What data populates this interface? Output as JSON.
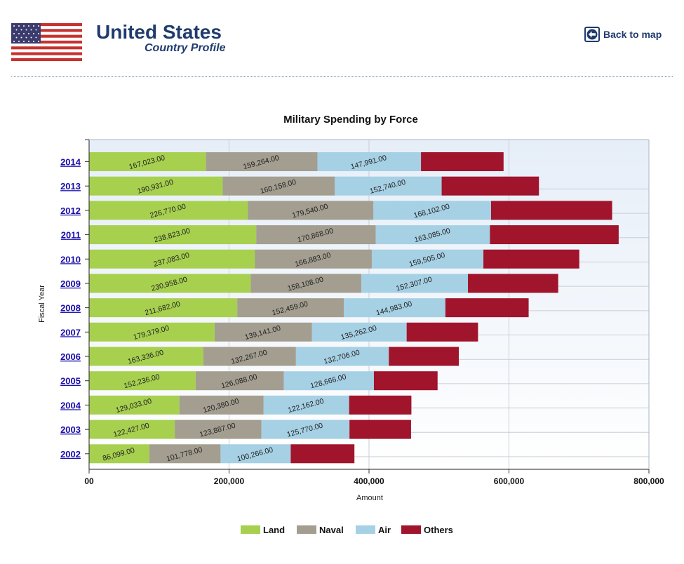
{
  "header": {
    "country": "United States",
    "subtitle": "Country Profile",
    "back_label": "Back to map"
  },
  "icons": {
    "flag": "us-flag-icon",
    "back": "back-arrow-icon"
  },
  "colors": {
    "title": "#1f3b6e",
    "link": "#1a0dab",
    "Land": "#a7d04f",
    "Naval": "#a39e90",
    "Air": "#a6d0e4",
    "Others": "#a0142c",
    "plot_bg_top": "#e6eef8",
    "plot_bg_bottom": "#ffffff"
  },
  "chart_data": {
    "type": "bar",
    "orientation": "horizontal",
    "stacked": true,
    "title": "Military Spending by Force",
    "xlabel": "Amount",
    "ylabel": "Fiscal Year",
    "xlim": [
      0,
      800000
    ],
    "xticks": [
      0,
      200000,
      400000,
      600000,
      800000
    ],
    "xtick_labels": [
      "00",
      "200,000",
      "400,000",
      "600,000",
      "800,000"
    ],
    "grid": true,
    "legend_position": "bottom",
    "categories": [
      "2014",
      "2013",
      "2012",
      "2011",
      "2010",
      "2009",
      "2008",
      "2007",
      "2006",
      "2005",
      "2004",
      "2003",
      "2002"
    ],
    "series": [
      {
        "name": "Land",
        "values": [
          167023,
          190931,
          226770,
          238823,
          237083,
          230958,
          211682,
          179379,
          163336,
          152236,
          129033,
          122427,
          86099
        ],
        "labels": [
          "167,023.00",
          "190,931.00",
          "226,770.00",
          "238,823.00",
          "237,083.00",
          "230,958.00",
          "211,682.00",
          "179,379.00",
          "163,336.00",
          "152,236.00",
          "129,033.00",
          "122,427.00",
          "86,099.00"
        ]
      },
      {
        "name": "Naval",
        "values": [
          159264,
          160158,
          179540,
          170868,
          166883,
          158108,
          152459,
          139141,
          132267,
          126088,
          120380,
          123887,
          101778
        ],
        "labels": [
          "159,264.00",
          "160,158.00",
          "179,540.00",
          "170,868.00",
          "166,883.00",
          "158,108.00",
          "152,459.00",
          "139,141.00",
          "132,267.00",
          "126,088.00",
          "120,380.00",
          "123,887.00",
          "101,778.00"
        ]
      },
      {
        "name": "Air",
        "values": [
          147991,
          152740,
          168102,
          163085,
          159505,
          152307,
          144983,
          135262,
          132706,
          128666,
          122162,
          125770,
          100266
        ],
        "labels": [
          "147,991.00",
          "152,740.00",
          "168,102.00",
          "163,085.00",
          "159,505.00",
          "152,307.00",
          "144,983.00",
          "135,262.00",
          "132,706.00",
          "128,666.00",
          "122,162.00",
          "125,770.00",
          "100,266.00"
        ]
      },
      {
        "name": "Others",
        "values": [
          118000,
          139000,
          173000,
          184000,
          137000,
          129000,
          119000,
          102000,
          100000,
          91000,
          89000,
          88000,
          91000
        ],
        "labels": []
      }
    ]
  }
}
